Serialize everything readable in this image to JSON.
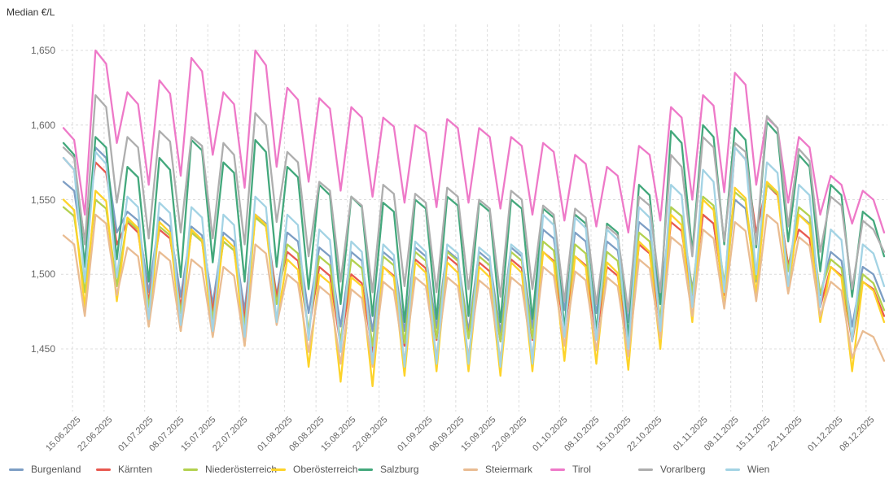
{
  "title": "Median €/L",
  "chart_data": {
    "type": "line",
    "title": "Median €/L",
    "ylabel": "Median €/L",
    "ylim": [
      1420,
      1665
    ],
    "grid": "dashed",
    "legend_position": "bottom",
    "y_tick_values": [
      1650,
      1600,
      1550,
      1500,
      1450
    ],
    "y_tick_labels": [
      "1,650",
      "1,600",
      "1,550",
      "1,500",
      "1,450"
    ],
    "x_tick_labels": [
      "15.06.2025",
      "22.06.2025",
      "01.07.2025",
      "08.07.2025",
      "15.07.2025",
      "22.07.2025",
      "01.08.2025",
      "08.08.2025",
      "15.08.2025",
      "22.08.2025",
      "01.09.2025",
      "08.09.2025",
      "15.09.2025",
      "22.09.2025",
      "01.10.2025",
      "08.10.2025",
      "15.10.2025",
      "22.10.2025",
      "01.11.2025",
      "08.11.2025",
      "15.11.2025",
      "22.11.2025",
      "01.12.2025",
      "08.12.2025"
    ],
    "x_tick_day_offsets": [
      2,
      9,
      18,
      25,
      32,
      39,
      49,
      56,
      63,
      70,
      80,
      87,
      94,
      101,
      110,
      117,
      124,
      131,
      141,
      148,
      155,
      162,
      171,
      178
    ],
    "total_days": 182,
    "points_per_series": 78,
    "series": [
      {
        "name": "Burgenland",
        "color": "#7d9ec4",
        "values": [
          1562,
          1556,
          1508,
          1585,
          1578,
          1528,
          1542,
          1536,
          1488,
          1538,
          1532,
          1485,
          1532,
          1526,
          1480,
          1528,
          1522,
          1476,
          1540,
          1534,
          1486,
          1528,
          1522,
          1474,
          1518,
          1512,
          1465,
          1515,
          1509,
          1462,
          1515,
          1509,
          1462,
          1518,
          1512,
          1464,
          1516,
          1510,
          1462,
          1515,
          1509,
          1461,
          1518,
          1512,
          1464,
          1530,
          1524,
          1476,
          1528,
          1522,
          1474,
          1522,
          1516,
          1468,
          1535,
          1529,
          1480,
          1545,
          1539,
          1490,
          1540,
          1534,
          1486,
          1550,
          1544,
          1495,
          1560,
          1554,
          1505,
          1540,
          1534,
          1486,
          1515,
          1509,
          1465,
          1505,
          1500,
          1482
        ]
      },
      {
        "name": "Kärnten",
        "color": "#e8584f",
        "values": [
          1578,
          1570,
          1522,
          1575,
          1568,
          1520,
          1535,
          1528,
          1482,
          1530,
          1524,
          1478,
          1528,
          1522,
          1475,
          1522,
          1516,
          1470,
          1540,
          1532,
          1485,
          1515,
          1509,
          1462,
          1505,
          1499,
          1452,
          1500,
          1494,
          1448,
          1505,
          1499,
          1452,
          1510,
          1504,
          1456,
          1512,
          1506,
          1458,
          1508,
          1502,
          1455,
          1510,
          1504,
          1456,
          1515,
          1509,
          1462,
          1512,
          1506,
          1458,
          1505,
          1499,
          1452,
          1520,
          1514,
          1466,
          1535,
          1529,
          1482,
          1540,
          1534,
          1486,
          1585,
          1577,
          1528,
          1560,
          1553,
          1506,
          1530,
          1524,
          1478,
          1505,
          1499,
          1455,
          1495,
          1490,
          1472
        ]
      },
      {
        "name": "Niederösterreich",
        "color": "#b3d14f",
        "values": [
          1545,
          1539,
          1488,
          1550,
          1544,
          1492,
          1536,
          1530,
          1478,
          1532,
          1526,
          1474,
          1528,
          1522,
          1470,
          1522,
          1516,
          1465,
          1538,
          1532,
          1480,
          1520,
          1514,
          1462,
          1512,
          1506,
          1455,
          1510,
          1504,
          1452,
          1512,
          1506,
          1454,
          1515,
          1509,
          1457,
          1515,
          1509,
          1457,
          1512,
          1506,
          1455,
          1515,
          1509,
          1457,
          1522,
          1516,
          1464,
          1520,
          1514,
          1462,
          1515,
          1509,
          1457,
          1528,
          1522,
          1470,
          1545,
          1539,
          1487,
          1552,
          1546,
          1494,
          1555,
          1549,
          1497,
          1560,
          1554,
          1502,
          1545,
          1539,
          1487,
          1510,
          1504,
          1456,
          1500,
          1494,
          1476
        ]
      },
      {
        "name": "Oberösterreich",
        "color": "#fdd32a",
        "values": [
          1550,
          1543,
          1478,
          1556,
          1549,
          1482,
          1538,
          1531,
          1465,
          1535,
          1528,
          1462,
          1530,
          1523,
          1458,
          1525,
          1518,
          1452,
          1540,
          1533,
          1468,
          1510,
          1503,
          1438,
          1500,
          1494,
          1428,
          1498,
          1492,
          1425,
          1505,
          1498,
          1432,
          1508,
          1501,
          1435,
          1508,
          1501,
          1435,
          1505,
          1498,
          1432,
          1508,
          1501,
          1435,
          1515,
          1508,
          1442,
          1512,
          1505,
          1440,
          1508,
          1501,
          1436,
          1522,
          1515,
          1450,
          1540,
          1533,
          1468,
          1550,
          1543,
          1478,
          1558,
          1551,
          1486,
          1562,
          1555,
          1490,
          1540,
          1533,
          1468,
          1505,
          1498,
          1435,
          1495,
          1489,
          1468
        ]
      },
      {
        "name": "Salzburg",
        "color": "#43a87c",
        "values": [
          1588,
          1580,
          1505,
          1592,
          1585,
          1510,
          1572,
          1565,
          1495,
          1578,
          1570,
          1498,
          1590,
          1583,
          1508,
          1575,
          1568,
          1495,
          1590,
          1582,
          1505,
          1572,
          1565,
          1490,
          1560,
          1553,
          1480,
          1552,
          1545,
          1472,
          1548,
          1542,
          1468,
          1550,
          1544,
          1470,
          1552,
          1546,
          1472,
          1548,
          1542,
          1468,
          1550,
          1544,
          1470,
          1544,
          1538,
          1464,
          1540,
          1534,
          1462,
          1534,
          1528,
          1458,
          1560,
          1553,
          1480,
          1596,
          1588,
          1515,
          1600,
          1592,
          1520,
          1598,
          1590,
          1518,
          1602,
          1594,
          1522,
          1580,
          1572,
          1502,
          1560,
          1553,
          1485,
          1542,
          1536,
          1512
        ]
      },
      {
        "name": "Steiermark",
        "color": "#e9bc92",
        "values": [
          1526,
          1520,
          1472,
          1540,
          1534,
          1486,
          1518,
          1512,
          1465,
          1515,
          1509,
          1462,
          1510,
          1504,
          1458,
          1505,
          1499,
          1452,
          1520,
          1514,
          1466,
          1500,
          1494,
          1448,
          1492,
          1486,
          1440,
          1490,
          1484,
          1438,
          1495,
          1489,
          1442,
          1498,
          1492,
          1445,
          1498,
          1492,
          1445,
          1496,
          1490,
          1443,
          1498,
          1492,
          1445,
          1505,
          1499,
          1452,
          1502,
          1496,
          1449,
          1498,
          1492,
          1445,
          1510,
          1504,
          1457,
          1525,
          1519,
          1472,
          1530,
          1524,
          1477,
          1535,
          1529,
          1482,
          1540,
          1534,
          1487,
          1525,
          1519,
          1472,
          1495,
          1489,
          1444,
          1462,
          1458,
          1442
        ]
      },
      {
        "name": "Tirol",
        "color": "#ee79c8",
        "values": [
          1598,
          1590,
          1540,
          1650,
          1641,
          1588,
          1622,
          1614,
          1560,
          1630,
          1621,
          1566,
          1645,
          1636,
          1580,
          1622,
          1614,
          1558,
          1650,
          1640,
          1572,
          1625,
          1617,
          1562,
          1618,
          1611,
          1556,
          1612,
          1605,
          1552,
          1605,
          1599,
          1548,
          1600,
          1595,
          1545,
          1604,
          1598,
          1548,
          1598,
          1592,
          1544,
          1592,
          1586,
          1540,
          1588,
          1582,
          1536,
          1580,
          1574,
          1532,
          1572,
          1566,
          1528,
          1586,
          1580,
          1536,
          1612,
          1605,
          1550,
          1620,
          1613,
          1555,
          1635,
          1627,
          1560,
          1605,
          1598,
          1548,
          1592,
          1585,
          1540,
          1566,
          1560,
          1534,
          1556,
          1550,
          1528
        ]
      },
      {
        "name": "Vorarlberg",
        "color": "#aeaeae",
        "values": [
          1585,
          1578,
          1520,
          1620,
          1612,
          1548,
          1592,
          1585,
          1524,
          1596,
          1589,
          1528,
          1592,
          1586,
          1524,
          1588,
          1580,
          1520,
          1608,
          1600,
          1535,
          1582,
          1575,
          1512,
          1562,
          1556,
          1495,
          1552,
          1546,
          1488,
          1560,
          1554,
          1492,
          1554,
          1548,
          1488,
          1558,
          1552,
          1490,
          1550,
          1544,
          1485,
          1556,
          1550,
          1490,
          1546,
          1540,
          1482,
          1544,
          1538,
          1480,
          1532,
          1526,
          1475,
          1552,
          1546,
          1488,
          1580,
          1572,
          1512,
          1592,
          1585,
          1522,
          1588,
          1582,
          1520,
          1606,
          1598,
          1532,
          1584,
          1576,
          1515,
          1552,
          1546,
          1490,
          1536,
          1530,
          1515
        ]
      },
      {
        "name": "Wien",
        "color": "#a3d3e4",
        "values": [
          1578,
          1570,
          1495,
          1582,
          1574,
          1498,
          1552,
          1545,
          1470,
          1548,
          1541,
          1466,
          1545,
          1538,
          1462,
          1540,
          1533,
          1458,
          1552,
          1545,
          1468,
          1540,
          1533,
          1456,
          1530,
          1523,
          1448,
          1522,
          1515,
          1440,
          1520,
          1513,
          1438,
          1522,
          1515,
          1440,
          1520,
          1514,
          1440,
          1518,
          1512,
          1438,
          1520,
          1514,
          1440,
          1540,
          1533,
          1458,
          1538,
          1531,
          1456,
          1530,
          1523,
          1450,
          1545,
          1538,
          1462,
          1560,
          1553,
          1478,
          1570,
          1562,
          1488,
          1585,
          1577,
          1500,
          1575,
          1568,
          1492,
          1560,
          1553,
          1478,
          1530,
          1523,
          1455,
          1520,
          1514,
          1492
        ]
      }
    ]
  },
  "legend": {
    "items": [
      "Burgenland",
      "Kärnten",
      "Niederösterreich",
      "Oberösterreich",
      "Salzburg",
      "Steiermark",
      "Tirol",
      "Vorarlberg",
      "Wien"
    ]
  },
  "colors": {
    "grid": "#dcdcdc",
    "axis_text": "#666666",
    "title_text": "#333333",
    "background": "#ffffff"
  }
}
